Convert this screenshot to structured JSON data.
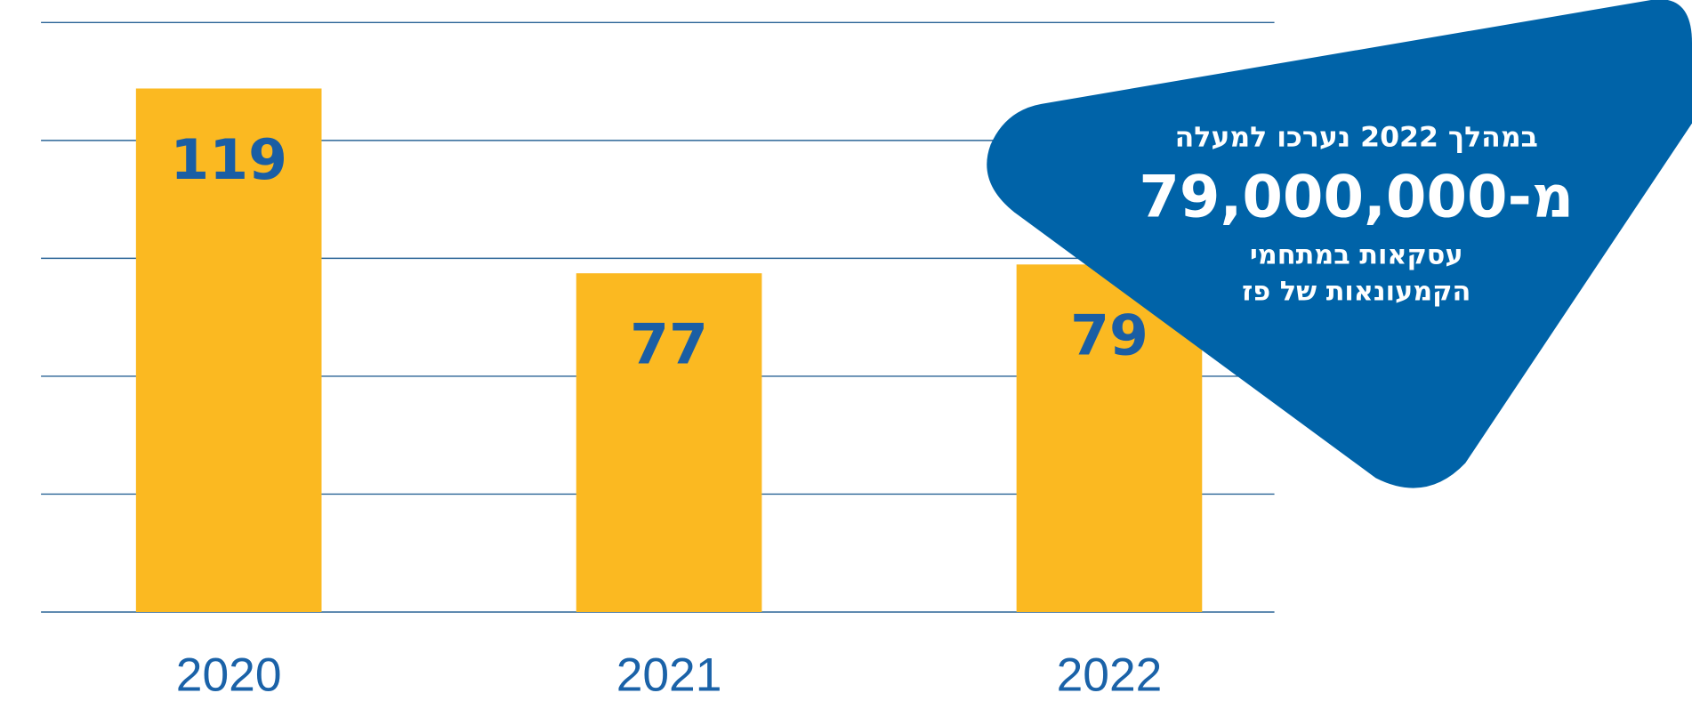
{
  "chart_data": {
    "type": "bar",
    "categories": [
      "2020",
      "2021",
      "2022"
    ],
    "values": [
      119,
      77,
      79
    ],
    "color": "#fbb921",
    "ylim": [
      0,
      134
    ],
    "annotations": [
      "במהלך 2022 נערכו למעלה",
      "מ-79,000,000",
      "עסקאות במתחמי",
      "הקמעונאות של פז"
    ]
  }
}
